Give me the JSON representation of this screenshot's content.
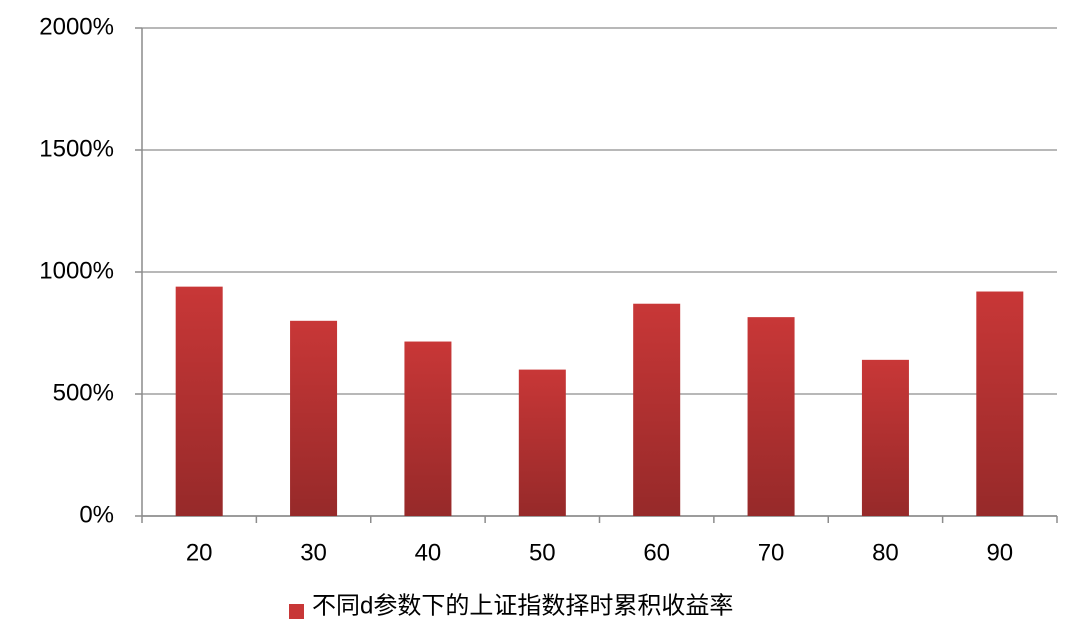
{
  "chart_data": {
    "type": "bar",
    "categories": [
      "20",
      "30",
      "40",
      "50",
      "60",
      "70",
      "80",
      "90"
    ],
    "series": [
      {
        "name": "不同d参数下的上证指数择时累积收益率",
        "color": "#c83737",
        "values": [
          940,
          800,
          715,
          600,
          870,
          815,
          640,
          920
        ]
      }
    ],
    "ylim": [
      0,
      2000
    ],
    "yticks": [
      {
        "value": 0,
        "label": "0%"
      },
      {
        "value": 500,
        "label": "500%"
      },
      {
        "value": 1000,
        "label": "1000%"
      },
      {
        "value": 1500,
        "label": "1500%"
      },
      {
        "value": 2000,
        "label": "2000%"
      }
    ],
    "grid": true,
    "legend": "bottom"
  }
}
